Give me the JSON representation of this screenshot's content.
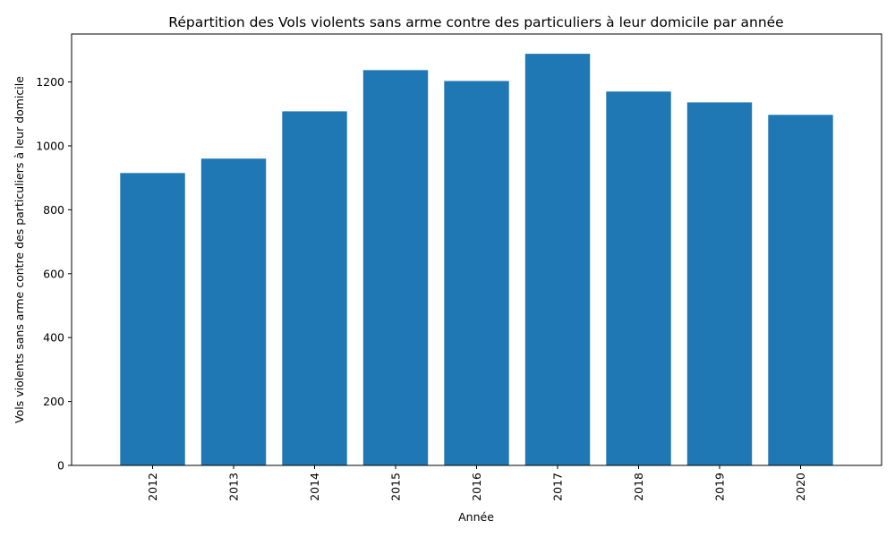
{
  "chart_data": {
    "type": "bar",
    "title": "Répartition des Vols violents sans arme contre des particuliers à leur domicile par année",
    "xlabel": "Année",
    "ylabel": "Vols violents sans arme contre des particuliers à leur domicile",
    "categories": [
      "2012",
      "2013",
      "2014",
      "2015",
      "2016",
      "2017",
      "2018",
      "2019",
      "2020"
    ],
    "values": [
      915,
      960,
      1108,
      1237,
      1203,
      1288,
      1170,
      1136,
      1097
    ],
    "ylim": [
      0,
      1350
    ],
    "yticks": [
      0,
      200,
      400,
      600,
      800,
      1000,
      1200
    ],
    "grid": false,
    "bar_color": "#1f77b4"
  }
}
